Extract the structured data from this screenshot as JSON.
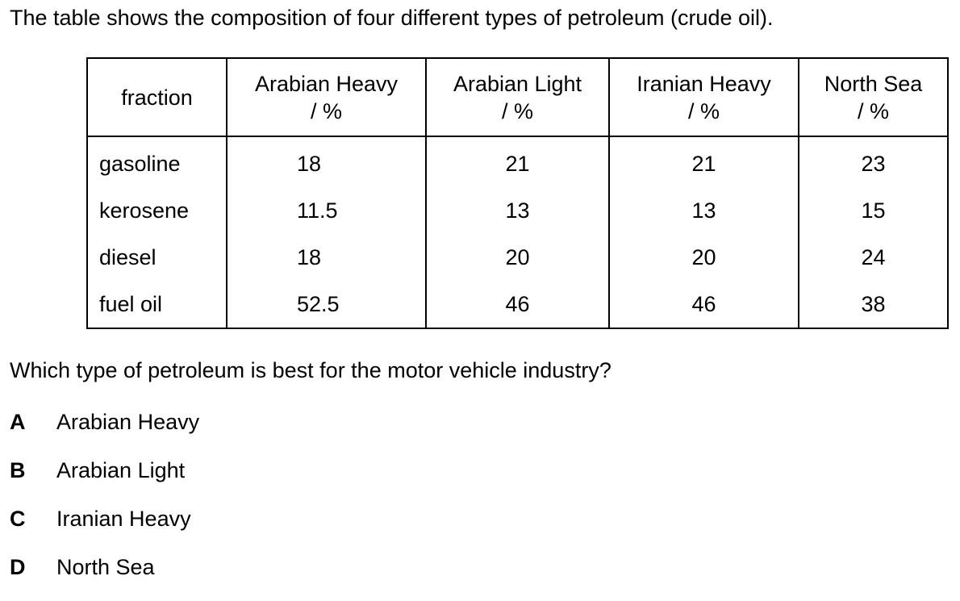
{
  "intro": "The table shows the composition of four different types of petroleum (crude oil).",
  "table": {
    "fraction_header": "fraction",
    "columns": [
      {
        "name": "Arabian Heavy",
        "unit": "/ %"
      },
      {
        "name": "Arabian Light",
        "unit": "/ %"
      },
      {
        "name": "Iranian Heavy",
        "unit": "/ %"
      },
      {
        "name": "North Sea",
        "unit": "/ %"
      }
    ],
    "rows": [
      {
        "fraction": "gasoline",
        "values": [
          "18",
          "21",
          "21",
          "23"
        ]
      },
      {
        "fraction": "kerosene",
        "values": [
          "11.5",
          "13",
          "13",
          "15"
        ]
      },
      {
        "fraction": "diesel",
        "values": [
          "18",
          "20",
          "20",
          "24"
        ]
      },
      {
        "fraction": "fuel oil",
        "values": [
          "52.5",
          "46",
          "46",
          "38"
        ]
      }
    ]
  },
  "question": "Which type of petroleum is best for the motor vehicle industry?",
  "options": [
    {
      "letter": "A",
      "text": "Arabian Heavy"
    },
    {
      "letter": "B",
      "text": "Arabian Light"
    },
    {
      "letter": "C",
      "text": "Iranian Heavy"
    },
    {
      "letter": "D",
      "text": "North Sea"
    }
  ]
}
